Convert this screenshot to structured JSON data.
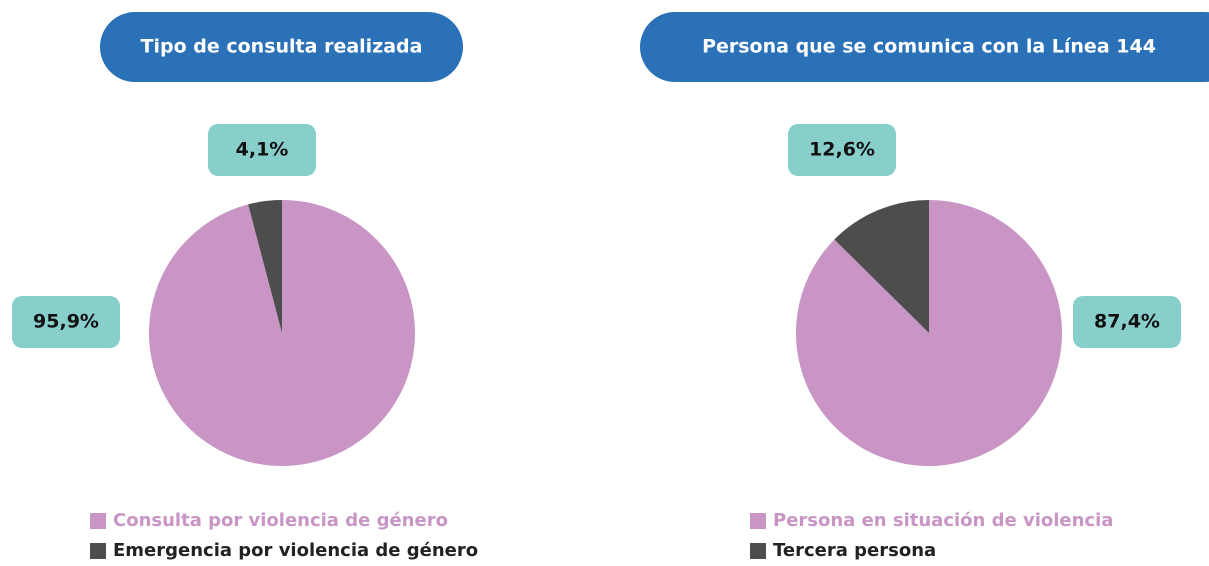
{
  "chart_data": [
    {
      "type": "pie",
      "title": "Tipo de consulta realizada",
      "categories": [
        "Consulta por violencia de género",
        "Emergencia por violencia de género"
      ],
      "values": [
        95.9,
        4.1
      ],
      "value_labels": [
        "95,9%",
        "4,1%"
      ],
      "colors": [
        "#c895c5",
        "#4d4d4d"
      ]
    },
    {
      "type": "pie",
      "title": "Persona que se comunica con la Línea 144",
      "categories": [
        "Persona en situación de violencia",
        "Tercera persona"
      ],
      "values": [
        87.4,
        12.6
      ],
      "value_labels": [
        "87,4%",
        "12,6%"
      ],
      "colors": [
        "#c895c5",
        "#4d4d4d"
      ]
    }
  ]
}
